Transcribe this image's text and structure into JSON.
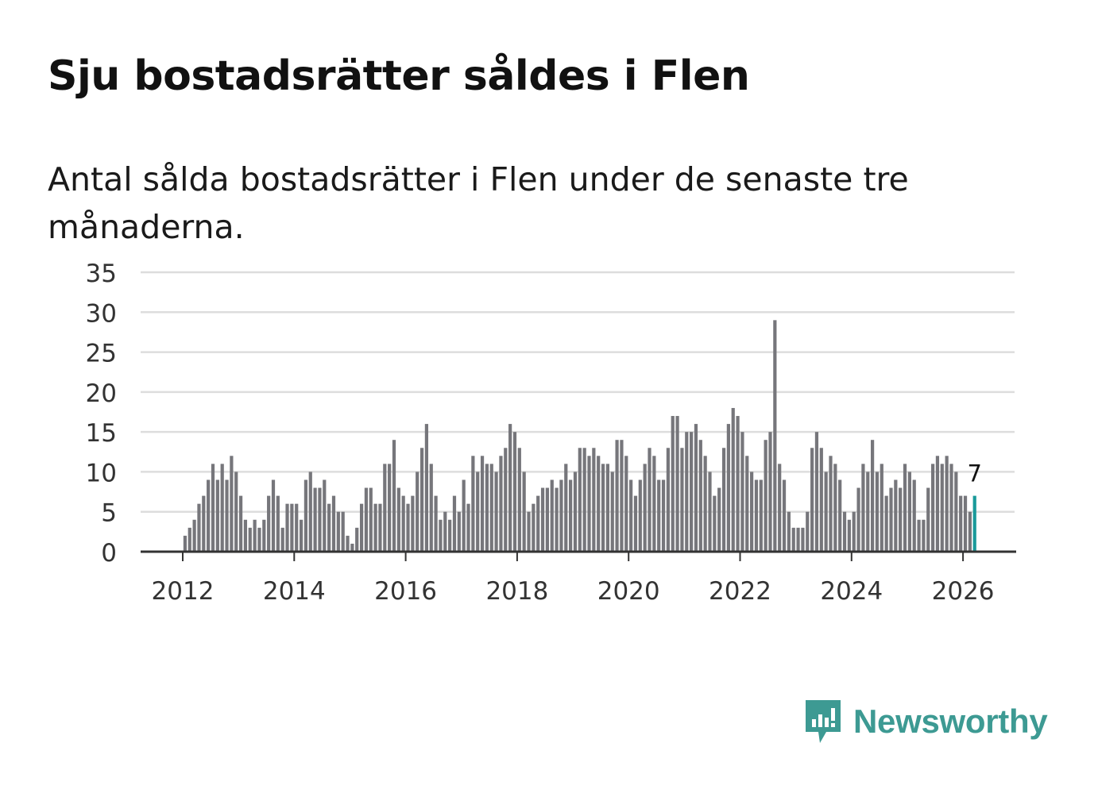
{
  "title": "Sju bostadsrätter såldes i Flen",
  "subtitle": "Antal sålda bostadsrätter i Flen under de senaste tre månaderna.",
  "brand": {
    "name": "Newsworthy",
    "icon": "newsworthy-logo-icon"
  },
  "colors": {
    "bar": "#76767b",
    "highlight": "#1a9a9a",
    "grid": "#dddddd",
    "axis": "#333333",
    "brand": "#3d9a93"
  },
  "chart_data": {
    "type": "bar",
    "title": "Sju bostadsrätter såldes i Flen",
    "xlabel": "",
    "ylabel": "",
    "ylim": [
      0,
      35
    ],
    "yticks": [
      0,
      5,
      10,
      15,
      20,
      25,
      30,
      35
    ],
    "xticks": [
      "2012",
      "2014",
      "2016",
      "2018",
      "2020",
      "2022",
      "2024",
      "2026"
    ],
    "start": "2012-01",
    "end": "2026-03",
    "highlight_label": "7",
    "values": [
      2,
      3,
      4,
      6,
      7,
      9,
      11,
      9,
      11,
      9,
      12,
      10,
      7,
      4,
      3,
      4,
      3,
      4,
      7,
      9,
      7,
      3,
      6,
      6,
      6,
      4,
      9,
      10,
      8,
      8,
      9,
      6,
      7,
      5,
      5,
      2,
      1,
      3,
      6,
      8,
      8,
      6,
      6,
      11,
      11,
      14,
      8,
      7,
      6,
      7,
      10,
      13,
      16,
      11,
      7,
      4,
      5,
      4,
      7,
      5,
      9,
      6,
      12,
      10,
      12,
      11,
      11,
      10,
      12,
      13,
      16,
      15,
      13,
      10,
      5,
      6,
      7,
      8,
      8,
      9,
      8,
      9,
      11,
      9,
      10,
      13,
      13,
      12,
      13,
      12,
      11,
      11,
      10,
      14,
      14,
      12,
      9,
      7,
      9,
      11,
      13,
      12,
      9,
      9,
      13,
      17,
      17,
      13,
      15,
      15,
      16,
      14,
      12,
      10,
      7,
      8,
      13,
      16,
      18,
      17,
      15,
      12,
      10,
      9,
      9,
      14,
      15,
      29,
      11,
      9,
      5,
      3,
      3,
      3,
      5,
      13,
      15,
      13,
      10,
      12,
      11,
      9,
      5,
      4,
      5,
      8,
      11,
      10,
      14,
      10,
      11,
      7,
      8,
      9,
      8,
      11,
      10,
      9,
      4,
      4,
      8,
      11,
      12,
      11,
      12,
      11,
      10,
      7,
      7,
      5,
      7
    ]
  }
}
